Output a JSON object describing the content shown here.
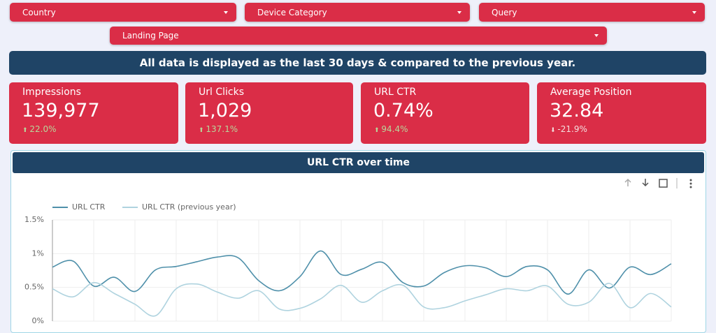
{
  "filters": [
    "Country",
    "Device Category",
    "Query",
    "Landing Page"
  ],
  "banner": "All data is displayed as the last 30 days & compared to the previous year.",
  "kpis": [
    {
      "label": "Impressions",
      "value": "139,977",
      "change": "22.0%",
      "direction": "up"
    },
    {
      "label": "Url Clicks",
      "value": "1,029",
      "change": "137.1%",
      "direction": "up"
    },
    {
      "label": "URL CTR",
      "value": "0.74%",
      "change": "94.4%",
      "direction": "up"
    },
    {
      "label": "Average Position",
      "value": "32.84",
      "change": "-21.9%",
      "direction": "down"
    }
  ],
  "chart_data": {
    "type": "line",
    "title": "URL CTR over time",
    "ylim": [
      0,
      1.5
    ],
    "yticks": [
      {
        "value": 0,
        "label": "0%"
      },
      {
        "value": 0.5,
        "label": "0.5%"
      },
      {
        "value": 1,
        "label": "1%"
      },
      {
        "value": 1.5,
        "label": "1.5%"
      }
    ],
    "grid": true,
    "series": [
      {
        "name": "URL CTR",
        "color": "#4f90aa",
        "values": [
          0.8,
          0.89,
          0.52,
          0.65,
          0.44,
          0.76,
          0.81,
          0.88,
          0.95,
          0.94,
          0.6,
          0.45,
          0.66,
          1.04,
          0.69,
          0.77,
          0.87,
          0.57,
          0.52,
          0.72,
          0.82,
          0.79,
          0.66,
          0.81,
          0.76,
          0.4,
          0.76,
          0.49,
          0.8,
          0.69,
          0.85
        ]
      },
      {
        "name": "URL CTR (previous year)",
        "color": "#afd3df",
        "values": [
          0.48,
          0.36,
          0.57,
          0.41,
          0.25,
          0.08,
          0.48,
          0.55,
          0.43,
          0.34,
          0.45,
          0.18,
          0.19,
          0.33,
          0.53,
          0.28,
          0.45,
          0.53,
          0.21,
          0.2,
          0.3,
          0.39,
          0.48,
          0.45,
          0.52,
          0.25,
          0.28,
          0.56,
          0.2,
          0.41,
          0.21
        ]
      }
    ]
  }
}
